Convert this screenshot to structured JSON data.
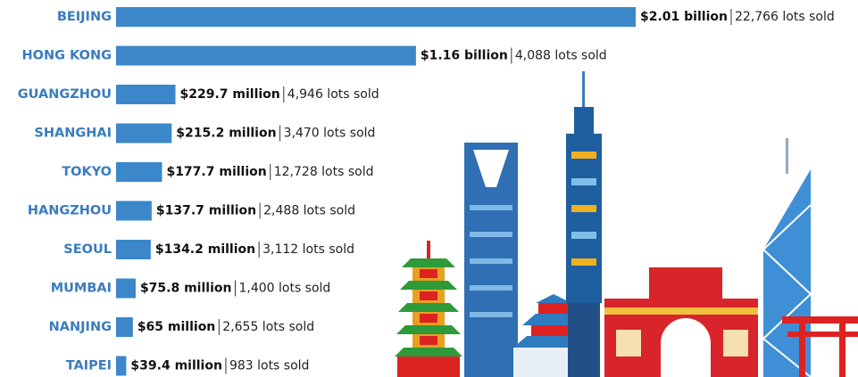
{
  "chart_data": {
    "type": "bar",
    "orientation": "horizontal",
    "categories": [
      "BEIJING",
      "HONG KONG",
      "GUANGZHOU",
      "SHANGHAI",
      "TOKYO",
      "HANGZHOU",
      "SEOUL",
      "MUMBAI",
      "NANJING",
      "TAIPEI"
    ],
    "values": [
      2010,
      1160,
      229.7,
      215.2,
      177.7,
      137.7,
      134.2,
      75.8,
      65,
      39.4
    ],
    "value_labels": [
      "$2.01 billion",
      "$1.16 billion",
      "$229.7 million",
      "$215.2 million",
      "$177.7 million",
      "$137.7 million",
      "$134.2 million",
      "$75.8 million",
      "$65 million",
      "$39.4 million"
    ],
    "lot_labels": [
      "22,766 lots sold",
      "4,088 lots sold",
      "4,946 lots sold",
      "3,470 lots sold",
      "12,728 lots sold",
      "2,488 lots sold",
      "3,112 lots sold",
      "1,400 lots sold",
      "2,655 lots sold",
      "983 lots sold"
    ],
    "color": "#3b87c9"
  }
}
